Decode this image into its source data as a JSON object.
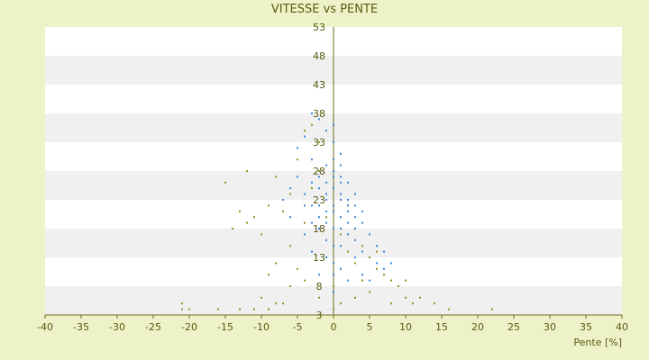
{
  "chart_data": {
    "type": "scatter",
    "title": "VITESSE vs PENTE",
    "xlabel": "Pente [%]",
    "ylabel": "",
    "xlim": [
      -40,
      40
    ],
    "ylim": [
      3,
      53
    ],
    "x_ticks": [
      "-40",
      "-35",
      "-30",
      "-25",
      "-20",
      "-15",
      "-10",
      "-5",
      "0",
      "5",
      "10",
      "15",
      "20",
      "25",
      "30",
      "35",
      "40"
    ],
    "y_ticks": [
      "3",
      "8",
      "13",
      "18",
      "23",
      "28",
      "33",
      "38",
      "43",
      "48",
      "53"
    ],
    "grid": "horizontal alternating bands",
    "legend": "none",
    "series": [
      {
        "color": "#3a86d6",
        "points": [
          [
            -1,
            24
          ],
          [
            0,
            25
          ],
          [
            1,
            23
          ],
          [
            -2,
            27
          ],
          [
            2,
            21
          ],
          [
            0,
            30
          ],
          [
            -1,
            29
          ],
          [
            1,
            27
          ],
          [
            -3,
            26
          ],
          [
            3,
            20
          ],
          [
            0,
            18
          ],
          [
            -2,
            22
          ],
          [
            2,
            17
          ],
          [
            1,
            15
          ],
          [
            -1,
            16
          ],
          [
            4,
            14
          ],
          [
            5,
            13
          ],
          [
            3,
            16
          ],
          [
            -4,
            24
          ],
          [
            -3,
            30
          ],
          [
            -2,
            33
          ],
          [
            -1,
            35
          ],
          [
            0,
            33
          ],
          [
            1,
            31
          ],
          [
            -5,
            27
          ],
          [
            -4,
            22
          ],
          [
            6,
            12
          ],
          [
            7,
            11
          ],
          [
            2,
            19
          ],
          [
            -2,
            18
          ],
          [
            0,
            21
          ],
          [
            1,
            20
          ],
          [
            -1,
            21
          ],
          [
            3,
            18
          ],
          [
            -3,
            19
          ],
          [
            0,
            12
          ],
          [
            1,
            11
          ],
          [
            -1,
            13
          ],
          [
            2,
            9
          ],
          [
            -2,
            10
          ],
          [
            0,
            7
          ],
          [
            4,
            10
          ],
          [
            -3,
            14
          ],
          [
            5,
            9
          ],
          [
            -6,
            20
          ],
          [
            -5,
            32
          ],
          [
            -4,
            34
          ],
          [
            -3,
            38
          ],
          [
            -2,
            37
          ],
          [
            0,
            36
          ],
          [
            1,
            29
          ],
          [
            2,
            26
          ],
          [
            3,
            24
          ],
          [
            4,
            19
          ],
          [
            5,
            17
          ],
          [
            6,
            15
          ],
          [
            -1,
            26
          ],
          [
            0,
            28
          ],
          [
            2,
            23
          ],
          [
            -2,
            25
          ],
          [
            1,
            18
          ],
          [
            0,
            15
          ],
          [
            -1,
            19
          ],
          [
            3,
            13
          ],
          [
            4,
            21
          ],
          [
            -4,
            17
          ],
          [
            -6,
            25
          ],
          [
            -7,
            23
          ],
          [
            7,
            14
          ],
          [
            8,
            12
          ],
          [
            0,
            22
          ],
          [
            1,
            24
          ],
          [
            -1,
            23
          ],
          [
            2,
            22
          ],
          [
            -2,
            20
          ],
          [
            0,
            27
          ],
          [
            1,
            26
          ],
          [
            -3,
            22
          ],
          [
            3,
            22
          ],
          [
            0,
            10
          ]
        ]
      },
      {
        "color": "#8a9a1e",
        "points": [
          [
            -21,
            5
          ],
          [
            -21,
            4
          ],
          [
            -20,
            4
          ],
          [
            -15,
            26
          ],
          [
            -14,
            18
          ],
          [
            -13,
            21
          ],
          [
            -12,
            19
          ],
          [
            -11,
            4
          ],
          [
            -10,
            6
          ],
          [
            -10,
            17
          ],
          [
            -9,
            22
          ],
          [
            -9,
            4
          ],
          [
            -8,
            27
          ],
          [
            -8,
            12
          ],
          [
            -7,
            21
          ],
          [
            -7,
            5
          ],
          [
            -6,
            24
          ],
          [
            -6,
            15
          ],
          [
            -5,
            30
          ],
          [
            -5,
            11
          ],
          [
            -4,
            35
          ],
          [
            -4,
            9
          ],
          [
            -3,
            36
          ],
          [
            -3,
            25
          ],
          [
            -2,
            33
          ],
          [
            -2,
            6
          ],
          [
            -1,
            20
          ],
          [
            0,
            4
          ],
          [
            0,
            8
          ],
          [
            1,
            5
          ],
          [
            2,
            14
          ],
          [
            3,
            12
          ],
          [
            3,
            6
          ],
          [
            4,
            15
          ],
          [
            5,
            13
          ],
          [
            5,
            7
          ],
          [
            6,
            11
          ],
          [
            7,
            10
          ],
          [
            8,
            9
          ],
          [
            9,
            8
          ],
          [
            10,
            9
          ],
          [
            10,
            6
          ],
          [
            11,
            5
          ],
          [
            12,
            6
          ],
          [
            14,
            5
          ],
          [
            16,
            4
          ],
          [
            22,
            4
          ],
          [
            -13,
            4
          ],
          [
            -9,
            10
          ],
          [
            -11,
            20
          ],
          [
            -12,
            28
          ],
          [
            -16,
            4
          ],
          [
            -8,
            5
          ],
          [
            -4,
            19
          ],
          [
            -2,
            28
          ],
          [
            1,
            17
          ],
          [
            4,
            9
          ],
          [
            6,
            14
          ],
          [
            8,
            5
          ],
          [
            -6,
            8
          ]
        ]
      }
    ]
  }
}
